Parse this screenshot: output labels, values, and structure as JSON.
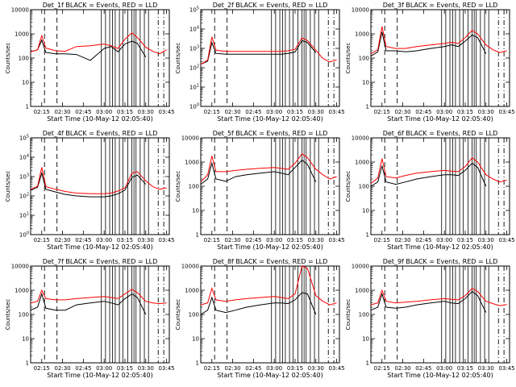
{
  "figure": {
    "y_ticks_decade": [
      "1",
      "10",
      "100",
      "1000",
      "10000"
    ],
    "y_ticks_power": [
      "10",
      "10",
      "10",
      "10",
      "10",
      "10"
    ],
    "y_ticks_power_exp": [
      "0",
      "1",
      "2",
      "3",
      "4",
      "5"
    ],
    "x_ticks": [
      "02:15",
      "02:30",
      "02:45",
      "03:00",
      "03:15",
      "03:30",
      "03:45"
    ],
    "xlabel": "Start Time (10-May-12 02:05:40)",
    "ylabel": "Counts/sec",
    "colors": {
      "events": "#000000",
      "lld": "#ff0000"
    }
  },
  "chart_data": [
    {
      "type": "line",
      "title": "Det_1f BLACK = Events, RED = LLD",
      "xlabel": "Start Time (10-May-12 02:05:40)",
      "ylabel": "Counts/sec",
      "xlim": [
        "02:07",
        "03:47"
      ],
      "ylim": [
        1,
        10000
      ],
      "yscale": "log",
      "x": [
        "02:07",
        "02:12",
        "02:15",
        "02:18",
        "02:25",
        "02:32",
        "02:40",
        "02:50",
        "03:00",
        "03:05",
        "03:10",
        "03:15",
        "03:20",
        "03:24",
        "03:30",
        "03:35",
        "03:40",
        "03:45"
      ],
      "series": [
        {
          "name": "Events",
          "color": "#000000",
          "values": [
            180,
            220,
            550,
            170,
            150,
            150,
            140,
            80,
            250,
            300,
            180,
            380,
            500,
            400,
            110,
            null,
            null,
            null
          ]
        },
        {
          "name": "LLD",
          "color": "#ff0000",
          "values": [
            180,
            220,
            850,
            260,
            200,
            190,
            300,
            320,
            380,
            320,
            250,
            600,
            1100,
            700,
            280,
            190,
            150,
            220
          ]
        }
      ]
    },
    {
      "type": "line",
      "title": "Det_2f BLACK = Events, RED = LLD",
      "xlabel": "Start Time (10-May-12 02:05:40)",
      "ylabel": "Counts/sec",
      "xlim": [
        "02:07",
        "03:47"
      ],
      "ylim": [
        1,
        100000
      ],
      "yscale": "log",
      "x": [
        "02:07",
        "02:12",
        "02:15",
        "02:18",
        "02:25",
        "02:32",
        "02:40",
        "02:50",
        "03:00",
        "03:05",
        "03:10",
        "03:15",
        "03:20",
        "03:24",
        "03:30",
        "03:35",
        "03:40",
        "03:45"
      ],
      "series": [
        {
          "name": "Events",
          "color": "#000000",
          "values": [
            150,
            220,
            2000,
            550,
            500,
            500,
            500,
            500,
            500,
            500,
            550,
            650,
            2500,
            2000,
            600,
            null,
            null,
            null
          ]
        },
        {
          "name": "LLD",
          "color": "#ff0000",
          "values": [
            150,
            250,
            4000,
            800,
            700,
            700,
            700,
            700,
            700,
            700,
            750,
            900,
            3500,
            2500,
            800,
            300,
            200,
            250
          ]
        }
      ]
    },
    {
      "type": "line",
      "title": "Det_3f BLACK = Events, RED = LLD",
      "xlabel": "Start Time (10-May-12 02:05:40)",
      "ylabel": "Counts/sec",
      "xlim": [
        "02:07",
        "03:47"
      ],
      "ylim": [
        1,
        10000
      ],
      "yscale": "log",
      "x": [
        "02:07",
        "02:12",
        "02:15",
        "02:18",
        "02:25",
        "02:32",
        "02:40",
        "02:50",
        "03:00",
        "03:05",
        "03:10",
        "03:15",
        "03:20",
        "03:24",
        "03:30",
        "03:35",
        "03:40",
        "03:45"
      ],
      "series": [
        {
          "name": "Events",
          "color": "#000000",
          "values": [
            120,
            180,
            1200,
            200,
            200,
            180,
            200,
            250,
            300,
            350,
            300,
            500,
            900,
            700,
            150,
            null,
            null,
            null
          ]
        },
        {
          "name": "LLD",
          "color": "#ff0000",
          "values": [
            150,
            220,
            2000,
            300,
            250,
            250,
            300,
            350,
            400,
            450,
            400,
            700,
            1400,
            1000,
            350,
            220,
            170,
            200
          ]
        }
      ]
    },
    {
      "type": "line",
      "title": "Det_4f BLACK = Events, RED = LLD",
      "xlabel": "Start Time (10-May-12 02:05:40)",
      "ylabel": "Counts/sec",
      "xlim": [
        "02:07",
        "03:47"
      ],
      "ylim": [
        1,
        100000
      ],
      "yscale": "log",
      "x": [
        "02:07",
        "02:12",
        "02:15",
        "02:18",
        "02:25",
        "02:32",
        "02:40",
        "02:50",
        "03:00",
        "03:05",
        "03:10",
        "03:15",
        "03:20",
        "03:24",
        "03:30",
        "03:35",
        "03:40",
        "03:45"
      ],
      "series": [
        {
          "name": "Events",
          "color": "#000000",
          "values": [
            200,
            280,
            1500,
            220,
            160,
            120,
            100,
            90,
            90,
            100,
            130,
            200,
            900,
            1200,
            400,
            null,
            null,
            null
          ]
        },
        {
          "name": "LLD",
          "color": "#ff0000",
          "values": [
            220,
            320,
            3000,
            300,
            220,
            170,
            140,
            130,
            130,
            140,
            180,
            260,
            1500,
            1800,
            600,
            300,
            220,
            260
          ]
        }
      ]
    },
    {
      "type": "line",
      "title": "Det_5f BLACK = Events, RED = LLD",
      "xlabel": "Start Time (10-May-12 02:05:40)",
      "ylabel": "Counts/sec",
      "xlim": [
        "02:07",
        "03:47"
      ],
      "ylim": [
        1,
        10000
      ],
      "yscale": "log",
      "x": [
        "02:07",
        "02:12",
        "02:15",
        "02:18",
        "02:25",
        "02:32",
        "02:40",
        "02:50",
        "03:00",
        "03:05",
        "03:10",
        "03:15",
        "03:20",
        "03:24",
        "03:30",
        "03:35",
        "03:40",
        "03:45"
      ],
      "series": [
        {
          "name": "Events",
          "color": "#000000",
          "values": [
            120,
            200,
            900,
            200,
            160,
            250,
            300,
            350,
            400,
            350,
            300,
            600,
            1200,
            800,
            150,
            null,
            null,
            null
          ]
        },
        {
          "name": "LLD",
          "color": "#ff0000",
          "values": [
            150,
            300,
            1800,
            400,
            400,
            450,
            500,
            550,
            600,
            550,
            500,
            900,
            2200,
            1500,
            500,
            300,
            200,
            250
          ]
        }
      ]
    },
    {
      "type": "line",
      "title": "Det_6f BLACK = Events, RED = LLD",
      "xlabel": "Start Time (10-May-12 02:05:40)",
      "ylabel": "Counts/sec",
      "xlim": [
        "02:07",
        "03:47"
      ],
      "ylim": [
        1,
        10000
      ],
      "yscale": "log",
      "x": [
        "02:07",
        "02:12",
        "02:15",
        "02:18",
        "02:25",
        "02:32",
        "02:40",
        "02:50",
        "03:00",
        "03:05",
        "03:10",
        "03:15",
        "03:20",
        "03:24",
        "03:30",
        "03:35",
        "03:40",
        "03:45"
      ],
      "series": [
        {
          "name": "Events",
          "color": "#000000",
          "values": [
            100,
            150,
            700,
            150,
            120,
            150,
            200,
            250,
            300,
            300,
            280,
            450,
            900,
            600,
            100,
            null,
            null,
            null
          ]
        },
        {
          "name": "LLD",
          "color": "#ff0000",
          "values": [
            130,
            220,
            1400,
            250,
            220,
            280,
            350,
            400,
            450,
            420,
            400,
            650,
            1500,
            1000,
            300,
            200,
            150,
            180
          ]
        }
      ]
    },
    {
      "type": "line",
      "title": "Det_7f BLACK = Events, RED = LLD",
      "xlabel": "Start Time (10-May-12 02:05:40)",
      "ylabel": "Counts/sec",
      "xlim": [
        "02:07",
        "03:47"
      ],
      "ylim": [
        1,
        10000
      ],
      "yscale": "log",
      "x": [
        "02:07",
        "02:12",
        "02:15",
        "02:18",
        "02:25",
        "02:32",
        "02:40",
        "02:50",
        "03:00",
        "03:05",
        "03:10",
        "03:15",
        "03:20",
        "03:24",
        "03:30",
        "03:35",
        "03:40",
        "03:45"
      ],
      "series": [
        {
          "name": "Events",
          "color": "#000000",
          "values": [
            150,
            200,
            700,
            180,
            150,
            150,
            250,
            300,
            350,
            300,
            250,
            450,
            700,
            500,
            100,
            null,
            null,
            null
          ]
        },
        {
          "name": "LLD",
          "color": "#ff0000",
          "values": [
            300,
            350,
            1000,
            450,
            400,
            400,
            450,
            500,
            550,
            500,
            450,
            700,
            1100,
            800,
            350,
            300,
            280,
            300
          ]
        }
      ]
    },
    {
      "type": "line",
      "title": "Det_8f BLACK = Events, RED = LLD",
      "xlabel": "Start Time (10-May-12 02:05:40)",
      "ylabel": "Counts/sec",
      "xlim": [
        "02:07",
        "03:47"
      ],
      "ylim": [
        1,
        10000
      ],
      "yscale": "log",
      "x": [
        "02:07",
        "02:12",
        "02:15",
        "02:18",
        "02:25",
        "02:32",
        "02:40",
        "02:50",
        "03:00",
        "03:05",
        "03:10",
        "03:15",
        "03:20",
        "03:24",
        "03:30",
        "03:35",
        "03:40",
        "03:45"
      ],
      "series": [
        {
          "name": "Events",
          "color": "#000000",
          "values": [
            100,
            150,
            500,
            150,
            120,
            150,
            200,
            250,
            300,
            300,
            280,
            400,
            800,
            700,
            100,
            null,
            null,
            null
          ]
        },
        {
          "name": "LLD",
          "color": "#ff0000",
          "values": [
            250,
            300,
            1200,
            400,
            350,
            400,
            450,
            500,
            550,
            500,
            450,
            700,
            10000,
            8000,
            600,
            350,
            250,
            300
          ]
        }
      ]
    },
    {
      "type": "line",
      "title": "Det_9f BLACK = Events, RED = LLD",
      "xlabel": "Start Time (10-May-12 02:05:40)",
      "ylabel": "Counts/sec",
      "xlim": [
        "02:07",
        "03:47"
      ],
      "ylim": [
        1,
        10000
      ],
      "yscale": "log",
      "x": [
        "02:07",
        "02:12",
        "02:15",
        "02:18",
        "02:25",
        "02:32",
        "02:40",
        "02:50",
        "03:00",
        "03:05",
        "03:10",
        "03:15",
        "03:20",
        "03:24",
        "03:30",
        "03:35",
        "03:40",
        "03:45"
      ],
      "series": [
        {
          "name": "Events",
          "color": "#000000",
          "values": [
            150,
            200,
            700,
            200,
            180,
            200,
            250,
            300,
            350,
            300,
            280,
            450,
            900,
            600,
            120,
            null,
            null,
            null
          ]
        },
        {
          "name": "LLD",
          "color": "#ff0000",
          "values": [
            250,
            300,
            1000,
            350,
            300,
            320,
            350,
            400,
            450,
            420,
            400,
            600,
            1200,
            900,
            350,
            280,
            230,
            260
          ]
        }
      ]
    }
  ]
}
